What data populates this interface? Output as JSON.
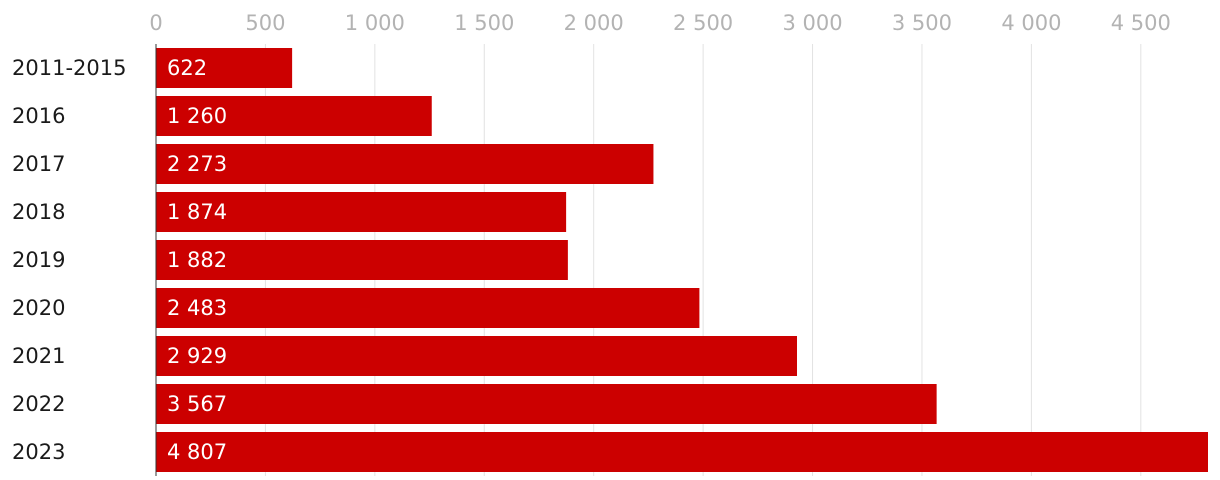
{
  "chart_data": {
    "type": "bar",
    "orientation": "horizontal",
    "categories": [
      "2011-2015",
      "2016",
      "2017",
      "2018",
      "2019",
      "2020",
      "2021",
      "2022",
      "2023"
    ],
    "values": [
      622,
      1260,
      2273,
      1874,
      1882,
      2483,
      2929,
      3567,
      4807
    ],
    "value_labels": [
      "622",
      "1 260",
      "2 273",
      "1 874",
      "1 882",
      "2 483",
      "2 929",
      "3 567",
      "4 807"
    ],
    "x_ticks": [
      0,
      500,
      1000,
      1500,
      2000,
      2500,
      3000,
      3500,
      4000,
      4500
    ],
    "x_tick_labels": [
      "0",
      "500",
      "1 000",
      "1 500",
      "2 000",
      "2 500",
      "3 000",
      "3 500",
      "4 000",
      "4 500"
    ],
    "xlim": [
      0,
      4807
    ],
    "axis_position": "top",
    "grid": true,
    "legend": "none",
    "title": "",
    "xlabel": "",
    "ylabel": "",
    "colors": {
      "bar": "#cc0000",
      "value_label": "#ffffff",
      "tick_label": "#b3b3b3",
      "category_label": "#1a1a1a",
      "grid": "#e2e2e2",
      "axis": "#333333"
    }
  }
}
